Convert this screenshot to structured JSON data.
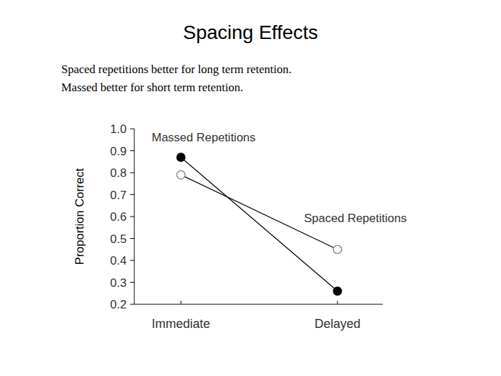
{
  "chart_data": {
    "type": "line",
    "title": "Spacing Effects",
    "subtitle": [
      "Spaced repetitions better for long term retention.",
      "Massed better for short term retention."
    ],
    "y_label": "Proportion Correct",
    "categories": [
      "Immediate",
      "Delayed"
    ],
    "series": [
      {
        "name": "Massed Repetitions",
        "color": "#000000",
        "marker": "filled_circle",
        "values": [
          0.87,
          0.26
        ]
      },
      {
        "name": "Spaced Repetitions",
        "color": "#000000",
        "marker": "open_circle",
        "values": [
          0.79,
          0.45
        ]
      }
    ],
    "ylim": [
      0.2,
      1.0
    ],
    "yticks": [
      0.2,
      0.3,
      0.4,
      0.5,
      0.6,
      0.7,
      0.8,
      0.9,
      {
        "value": 1,
        "label": "1.0"
      }
    ],
    "grid": false
  }
}
